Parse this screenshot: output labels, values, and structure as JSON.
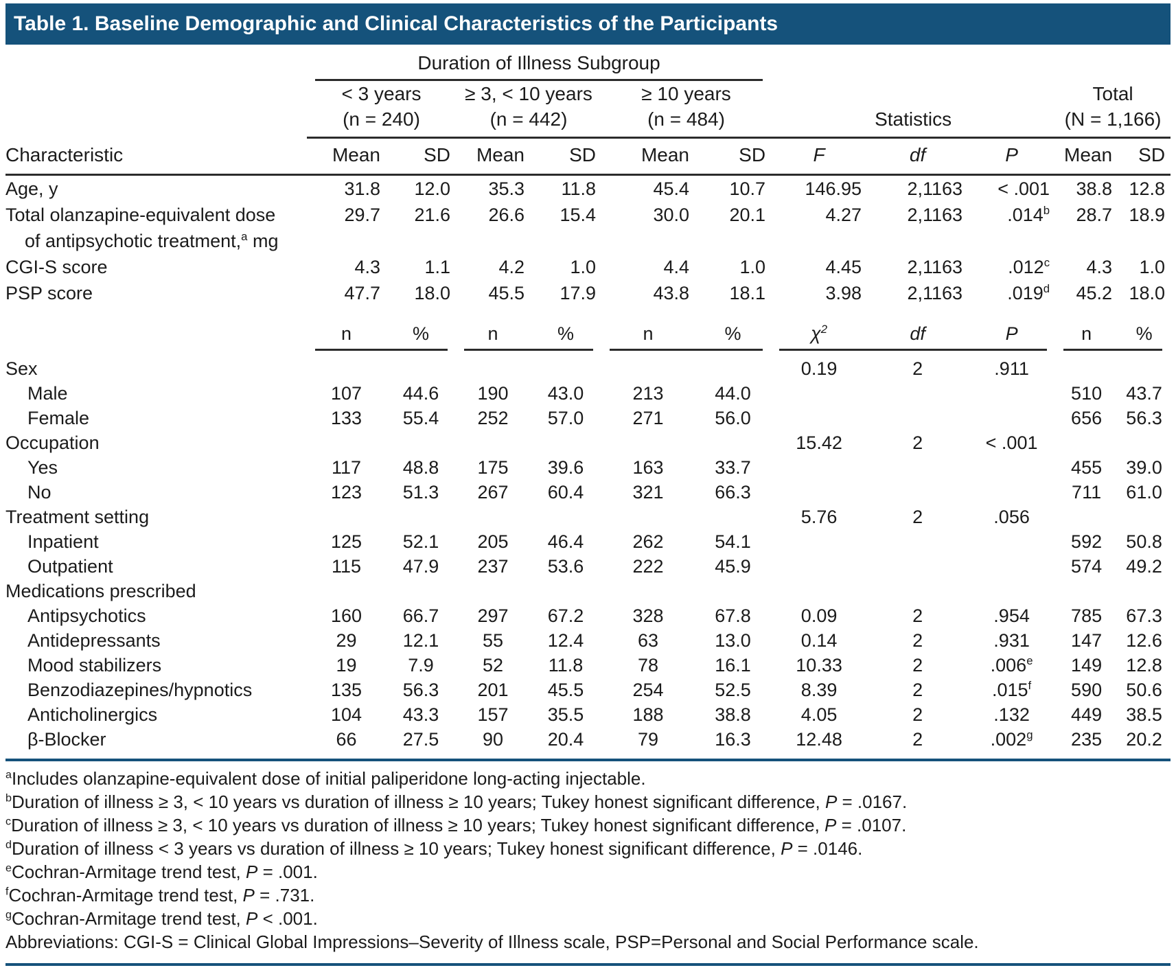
{
  "title": "Table 1. Baseline Demographic and Clinical Characteristics of the Participants",
  "colors": {
    "header_bg": "#15527b",
    "rule_blue": "#15527b",
    "rule_dark": "#2b2b2b",
    "text": "#1b1b1b"
  },
  "header": {
    "group_title": "Duration of Illness Subgroup",
    "subgroups": [
      {
        "range": "< 3 years",
        "n": "(n = 240)"
      },
      {
        "range": "≥ 3, < 10 years",
        "n": "(n = 442)"
      },
      {
        "range": "≥ 10 years",
        "n": "(n = 484)"
      }
    ],
    "statistics_label": "Statistics",
    "total_label": "Total",
    "total_n": "(N = 1,166)",
    "characteristic_label": "Characteristic",
    "mean_label": "Mean",
    "sd_label": "SD",
    "f_label": "F",
    "df_label": "df",
    "p_label": "P"
  },
  "table": {
    "count_header": {
      "labels": [
        "n",
        "%",
        "n",
        "%",
        "n",
        "%",
        "χ^{2}",
        "df",
        "P",
        "n",
        "%"
      ]
    },
    "sections": [
      {
        "type": "mean",
        "rows": [
          {
            "label": "Age, y",
            "cells": [
              "31.8",
              "12.0",
              "35.3",
              "11.8",
              "45.4",
              "10.7",
              "146.95",
              "2,1163",
              "< .001",
              "38.8",
              "12.8"
            ]
          },
          {
            "label": "Total olanzapine-equivalent dose",
            "label2": "of antipsychotic treatment,^{a} mg",
            "cells": [
              "29.7",
              "21.6",
              "26.6",
              "15.4",
              "30.0",
              "20.1",
              "4.27",
              "2,1163",
              ".014^{b}",
              "28.7",
              "18.9"
            ]
          },
          {
            "label": "CGI-S score",
            "cells": [
              "4.3",
              "1.1",
              "4.2",
              "1.0",
              "4.4",
              "1.0",
              "4.45",
              "2,1163",
              ".012^{c}",
              "4.3",
              "1.0"
            ]
          },
          {
            "label": "PSP score",
            "cells": [
              "47.7",
              "18.0",
              "45.5",
              "17.9",
              "43.8",
              "18.1",
              "3.98",
              "2,1163",
              ".019^{d}",
              "45.2",
              "18.0"
            ]
          }
        ]
      },
      {
        "type": "count",
        "rows": [
          {
            "label": "Sex",
            "cells": [
              "",
              "",
              "",
              "",
              "",
              "",
              "0.19",
              "2",
              ".911",
              "",
              ""
            ]
          },
          {
            "label": "Male",
            "indent": 1,
            "cells": [
              "107",
              "44.6",
              "190",
              "43.0",
              "213",
              "44.0",
              "",
              "",
              "",
              "510",
              "43.7"
            ]
          },
          {
            "label": "Female",
            "indent": 1,
            "cells": [
              "133",
              "55.4",
              "252",
              "57.0",
              "271",
              "56.0",
              "",
              "",
              "",
              "656",
              "56.3"
            ]
          },
          {
            "label": "Occupation",
            "cells": [
              "",
              "",
              "",
              "",
              "",
              "",
              "15.42",
              "2",
              "< .001",
              "",
              ""
            ]
          },
          {
            "label": "Yes",
            "indent": 1,
            "cells": [
              "117",
              "48.8",
              "175",
              "39.6",
              "163",
              "33.7",
              "",
              "",
              "",
              "455",
              "39.0"
            ]
          },
          {
            "label": "No",
            "indent": 1,
            "cells": [
              "123",
              "51.3",
              "267",
              "60.4",
              "321",
              "66.3",
              "",
              "",
              "",
              "711",
              "61.0"
            ]
          },
          {
            "label": "Treatment setting",
            "cells": [
              "",
              "",
              "",
              "",
              "",
              "",
              "5.76",
              "2",
              ".056",
              "",
              ""
            ]
          },
          {
            "label": "Inpatient",
            "indent": 1,
            "cells": [
              "125",
              "52.1",
              "205",
              "46.4",
              "262",
              "54.1",
              "",
              "",
              "",
              "592",
              "50.8"
            ]
          },
          {
            "label": "Outpatient",
            "indent": 1,
            "cells": [
              "115",
              "47.9",
              "237",
              "53.6",
              "222",
              "45.9",
              "",
              "",
              "",
              "574",
              "49.2"
            ]
          },
          {
            "label": "Medications prescribed",
            "cells": [
              "",
              "",
              "",
              "",
              "",
              "",
              "",
              "",
              "",
              "",
              ""
            ]
          },
          {
            "label": "Antipsychotics",
            "indent": 1,
            "cells": [
              "160",
              "66.7",
              "297",
              "67.2",
              "328",
              "67.8",
              "0.09",
              "2",
              ".954",
              "785",
              "67.3"
            ]
          },
          {
            "label": "Antidepressants",
            "indent": 1,
            "cells": [
              "29",
              "12.1",
              "55",
              "12.4",
              "63",
              "13.0",
              "0.14",
              "2",
              ".931",
              "147",
              "12.6"
            ]
          },
          {
            "label": "Mood stabilizers",
            "indent": 1,
            "cells": [
              "19",
              "7.9",
              "52",
              "11.8",
              "78",
              "16.1",
              "10.33",
              "2",
              ".006^{e}",
              "149",
              "12.8"
            ]
          },
          {
            "label": "Benzodiazepines/hypnotics",
            "indent": 1,
            "cells": [
              "135",
              "56.3",
              "201",
              "45.5",
              "254",
              "52.5",
              "8.39",
              "2",
              ".015^{f}",
              "590",
              "50.6"
            ]
          },
          {
            "label": "Anticholinergics",
            "indent": 1,
            "cells": [
              "104",
              "43.3",
              "157",
              "35.5",
              "188",
              "38.8",
              "4.05",
              "2",
              ".132",
              "449",
              "38.5"
            ]
          },
          {
            "label": "β-Blocker",
            "indent": 1,
            "cells": [
              "66",
              "27.5",
              "90",
              "20.4",
              "79",
              "16.3",
              "12.48",
              "2",
              ".002^{g}",
              "235",
              "20.2"
            ]
          }
        ]
      }
    ]
  },
  "footnotes": [
    "^{a}Includes olanzapine-equivalent dose of initial paliperidone long-acting injectable.",
    "^{b}Duration of illness ≥ 3, < 10 years vs duration of illness ≥ 10 years; Tukey honest significant difference, *P* = .0167.",
    "^{c}Duration of illness ≥ 3, < 10 years vs duration of illness ≥ 10 years; Tukey honest significant difference, *P* = .0107.",
    "^{d}Duration of illness < 3 years vs duration of illness ≥ 10 years; Tukey honest significant difference, *P* = .0146.",
    "^{e}Cochran-Armitage trend test, *P* = .001.",
    "^{f}Cochran-Armitage trend test, *P* = .731.",
    "^{g}Cochran-Armitage trend test, *P* < .001."
  ],
  "abbreviations": "Abbreviations: CGI-S = Clinical Global Impressions–Severity of Illness scale, PSP=Personal and Social Performance scale."
}
